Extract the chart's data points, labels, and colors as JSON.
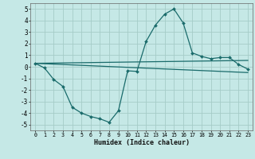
{
  "xlabel": "Humidex (Indice chaleur)",
  "background_color": "#c5e8e6",
  "grid_color": "#a5ccc8",
  "line_color": "#1a6b6b",
  "xlim": [
    -0.5,
    23.5
  ],
  "ylim": [
    -5.5,
    5.5
  ],
  "yticks": [
    -5,
    -4,
    -3,
    -2,
    -1,
    0,
    1,
    2,
    3,
    4,
    5
  ],
  "xticks": [
    0,
    1,
    2,
    3,
    4,
    5,
    6,
    7,
    8,
    9,
    10,
    11,
    12,
    13,
    14,
    15,
    16,
    17,
    18,
    19,
    20,
    21,
    22,
    23
  ],
  "main_x": [
    0,
    1,
    2,
    3,
    4,
    5,
    6,
    7,
    8,
    9,
    10,
    11,
    12,
    13,
    14,
    15,
    16,
    17,
    18,
    19,
    20,
    21,
    22,
    23
  ],
  "main_y": [
    0.3,
    -0.1,
    -1.1,
    -1.7,
    -3.5,
    -4.0,
    -4.3,
    -4.5,
    -4.8,
    -3.8,
    -0.35,
    -0.4,
    2.2,
    3.6,
    4.55,
    5.0,
    3.8,
    1.2,
    0.9,
    0.7,
    0.8,
    0.8,
    0.2,
    -0.2
  ],
  "upper_line": [
    [
      0,
      23
    ],
    [
      0.3,
      0.55
    ]
  ],
  "lower_line": [
    [
      0,
      23
    ],
    [
      0.3,
      -0.5
    ]
  ]
}
